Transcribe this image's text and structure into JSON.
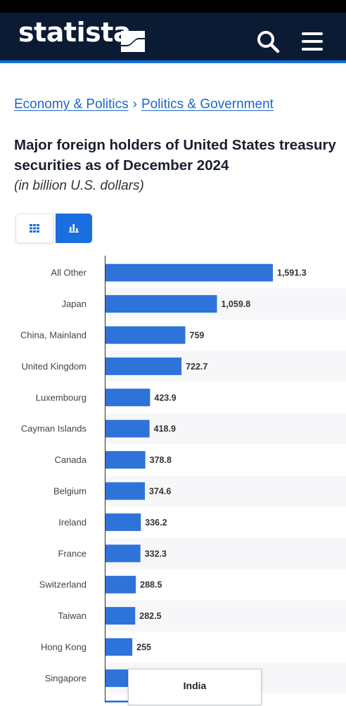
{
  "header": {
    "logo_text": "statista",
    "icons": {
      "search": "search-icon",
      "menu": "menu-icon"
    },
    "colors": {
      "background": "#0b1b33",
      "accent": "#0f6fe0"
    }
  },
  "breadcrumb": {
    "items": [
      "Economy & Politics",
      "Politics & Government"
    ],
    "separator": "›"
  },
  "title": "Major foreign holders of United States treasury securities as of December 2024",
  "subtitle": "(in billion U.S. dollars)",
  "view_toggle": {
    "options": [
      {
        "name": "table",
        "icon": "table-grid-icon",
        "active": false
      },
      {
        "name": "chart",
        "icon": "bar-chart-icon",
        "active": true
      }
    ]
  },
  "chart_data": {
    "type": "bar",
    "orientation": "horizontal",
    "categories": [
      "All Other",
      "Japan",
      "China, Mainland",
      "United Kingdom",
      "Luxembourg",
      "Cayman Islands",
      "Canada",
      "Belgium",
      "Ireland",
      "France",
      "Switzerland",
      "Taiwan",
      "Hong Kong",
      "Singapore",
      "India"
    ],
    "values": [
      1591.3,
      1059.8,
      759,
      722.7,
      423.9,
      418.9,
      378.8,
      374.6,
      336.2,
      332.3,
      288.5,
      282.5,
      255,
      230,
      225
    ],
    "value_labels": [
      "1,591.3",
      "1,059.8",
      "759",
      "722.7",
      "423.9",
      "418.9",
      "378.8",
      "374.6",
      "336.2",
      "332.3",
      "288.5",
      "282.5",
      "255",
      "",
      ""
    ],
    "xlim": [
      0,
      2000
    ],
    "bar_color": "#2e73d9",
    "grid": true
  },
  "tooltip": {
    "label": "India"
  }
}
